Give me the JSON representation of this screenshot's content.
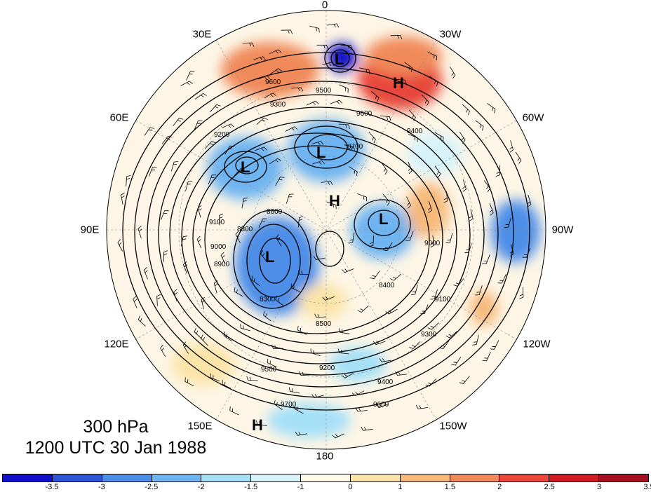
{
  "caption": {
    "level": "300 hPa",
    "time": "1200 UTC 30 Jan 1988"
  },
  "longitude_labels": [
    "0",
    "30W",
    "60W",
    "90W",
    "120W",
    "150W",
    "180",
    "150E",
    "120E",
    "90E",
    "60E",
    "30E"
  ],
  "pressure_centers": [
    "L",
    "H",
    "L",
    "H",
    "L",
    "L",
    "L",
    "H"
  ],
  "contour_labels": [
    "9600",
    "9500",
    "9600",
    "9300",
    "9200",
    "9100",
    "9000",
    "8900",
    "8800",
    "8700",
    "8600",
    "8500",
    "9400",
    "9700",
    "8300",
    "8400",
    "9000",
    "9100",
    "9200",
    "9300",
    "9400",
    "9500",
    "9600"
  ],
  "colorbar": {
    "colors": [
      "#1010c8",
      "#2d55d6",
      "#4d8ee8",
      "#6eb4f0",
      "#a5e0f7",
      "#d6f3fa",
      "#fffbe8",
      "#fbe4a8",
      "#f6b97a",
      "#f08a5a",
      "#e8473a",
      "#d01c22",
      "#a51022"
    ],
    "tick_labels": [
      "-3.5",
      "-3",
      "-2.5",
      "-2",
      "-1.5",
      "-1",
      "0",
      "1",
      "1.5",
      "2",
      "2.5",
      "3",
      "3.5"
    ]
  }
}
